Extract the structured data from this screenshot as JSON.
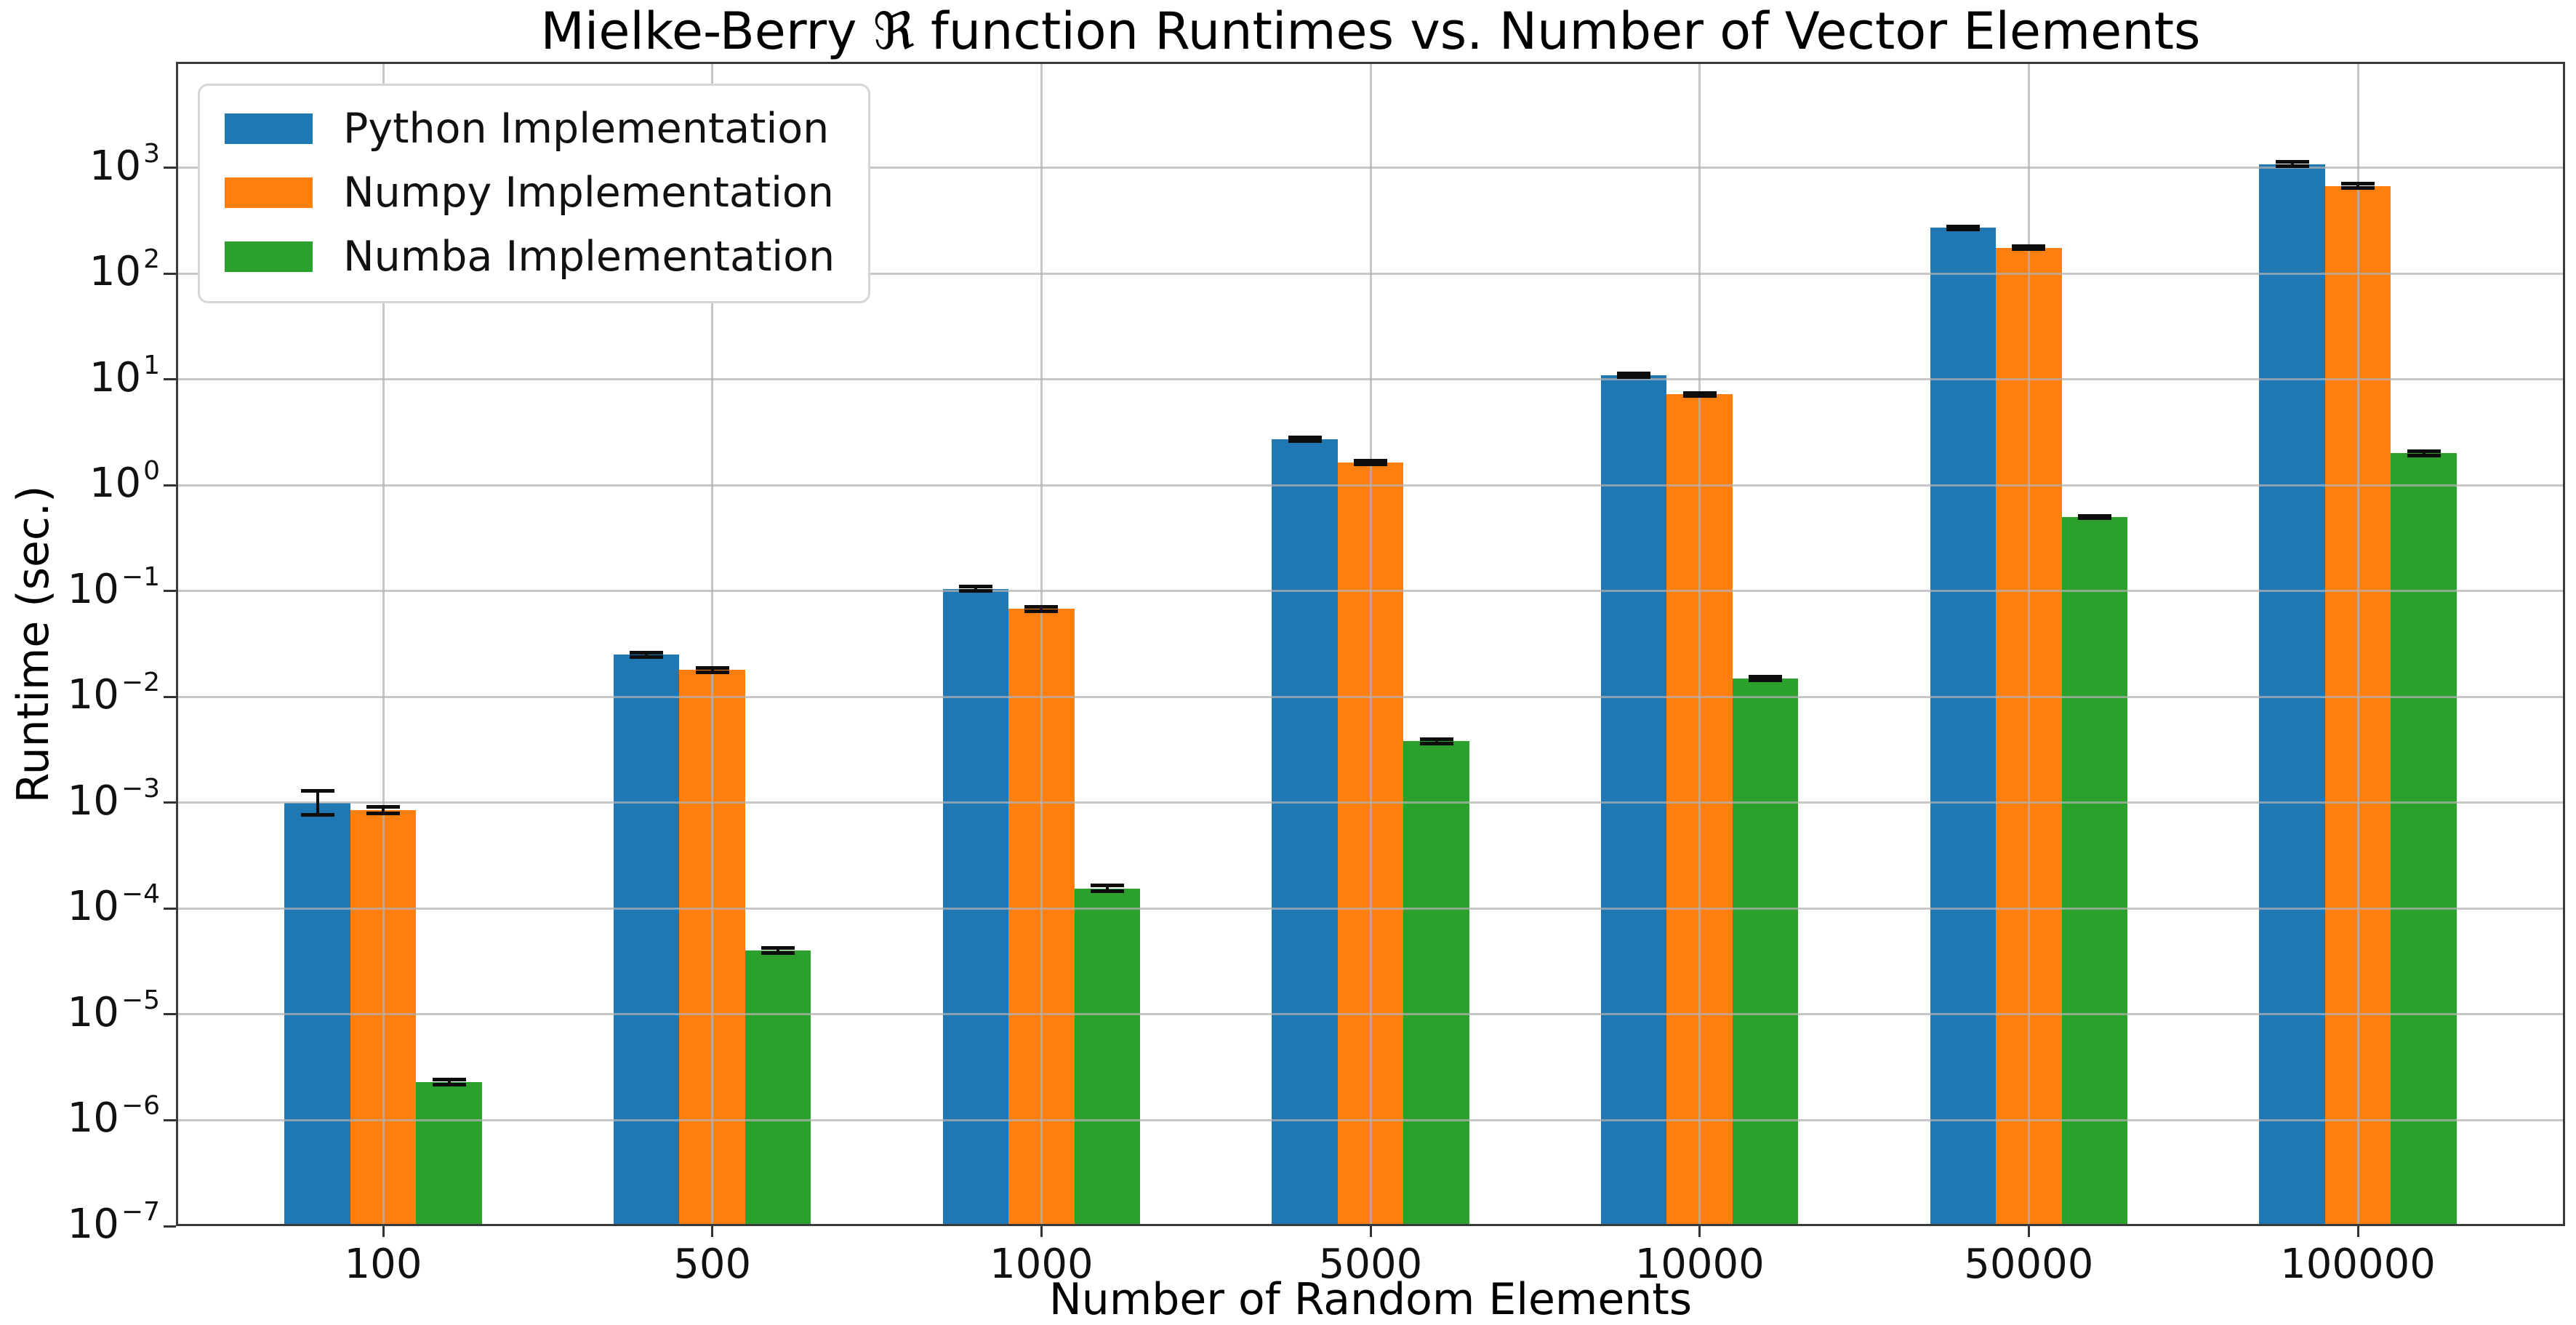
{
  "title": "Mielke-Berry ℜ function Runtimes vs. Number of Vector Elements",
  "chart_data": {
    "type": "bar",
    "title": "Mielke-Berry ℜ function Runtimes vs. Number of Vector Elements",
    "xlabel": "Number of Random Elements",
    "ylabel": "Runtime (sec.)",
    "categories": [
      "100",
      "500",
      "1000",
      "5000",
      "10000",
      "50000",
      "100000"
    ],
    "series": [
      {
        "name": "Python Implementation",
        "color": "#1f77b4",
        "values": [
          0.001,
          0.025,
          0.105,
          2.7,
          11.0,
          270,
          1080
        ],
        "err_rel": [
          0.3,
          0.05,
          0.05,
          0.04,
          0.04,
          0.03,
          0.05
        ]
      },
      {
        "name": "Numpy Implementation",
        "color": "#ff7f0e",
        "values": [
          0.00085,
          0.018,
          0.068,
          1.65,
          7.2,
          175,
          670
        ],
        "err_rel": [
          0.08,
          0.05,
          0.05,
          0.04,
          0.03,
          0.03,
          0.05
        ]
      },
      {
        "name": "Numba Implementation",
        "color": "#2ca02c",
        "values": [
          2.3e-06,
          4e-05,
          0.000155,
          0.0038,
          0.015,
          0.5,
          2.0
        ],
        "err_rel": [
          0.06,
          0.06,
          0.06,
          0.05,
          0.04,
          0.03,
          0.05
        ]
      }
    ],
    "y_scale": "log",
    "ylim": [
      1e-07,
      10000.0
    ],
    "y_tick_exponents": [
      3,
      2,
      1,
      0,
      -1,
      -2,
      -3,
      -4,
      -5,
      -6,
      -7
    ],
    "grid": true,
    "grid_above_bars": true,
    "legend_position": "upper left",
    "error_bars": true,
    "colors": {
      "grid": "#b2b2b2",
      "spine": "#3a3a3a",
      "error_bar": "#0d0d0d",
      "background": "#ffffff"
    }
  }
}
